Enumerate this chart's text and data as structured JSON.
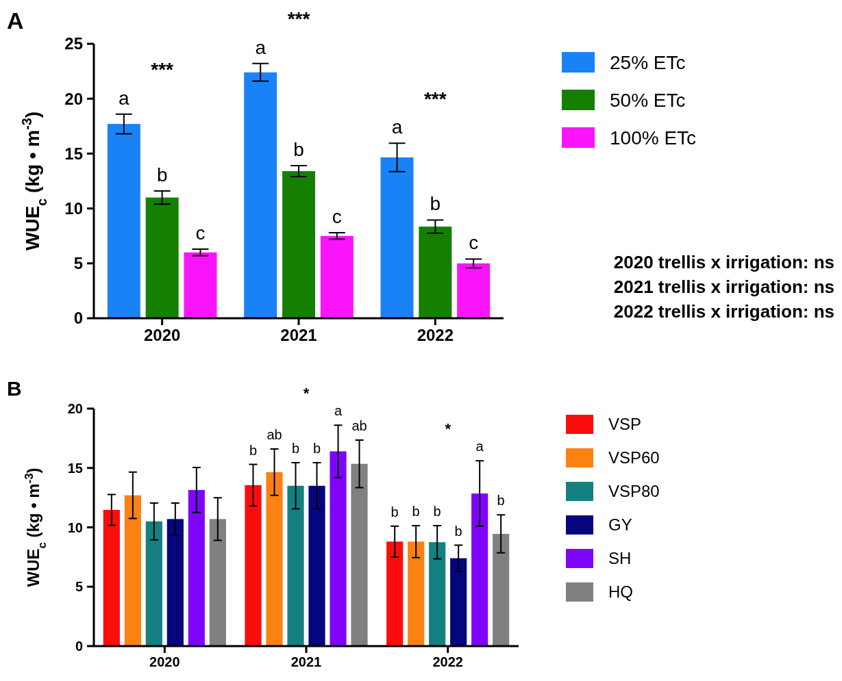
{
  "chart_data": [
    {
      "type": "bar",
      "title": "A",
      "ylabel": "WUE$_{c}$ (kg • m$^{-3}$)",
      "categories": [
        "2020",
        "2021",
        "2022"
      ],
      "ylim": [
        0,
        25
      ],
      "yticks": [
        0,
        5,
        10,
        15,
        20,
        25
      ],
      "grid": false,
      "legend": "right",
      "series": [
        {
          "name": "25% ETc",
          "color": "#1a82f7",
          "values": [
            17.7,
            22.4,
            14.65
          ],
          "errors": [
            0.9,
            0.8,
            1.3
          ],
          "value_labels": [
            "a",
            "a",
            "a"
          ]
        },
        {
          "name": "50% ETc",
          "color": "#158000",
          "values": [
            11.0,
            13.4,
            8.35
          ],
          "errors": [
            0.6,
            0.5,
            0.6
          ],
          "value_labels": [
            "b",
            "b",
            "b"
          ]
        },
        {
          "name": "100% ETc",
          "color": "#fa14fa",
          "values": [
            6.0,
            7.5,
            5.0
          ],
          "errors": [
            0.3,
            0.3,
            0.4
          ],
          "value_labels": [
            "c",
            "c",
            "c"
          ]
        }
      ],
      "annotations": [
        "***",
        "***",
        "***",
        "2020 trellis x irrigation: ns",
        "2021 trellis x irrigation: ns",
        "2022 trellis x irrigation: ns"
      ]
    },
    {
      "type": "bar",
      "title": "B",
      "ylabel": "WUE$_{c}$ (kg • m$^{-3}$)",
      "categories": [
        "2020",
        "2021",
        "2022"
      ],
      "ylim": [
        0,
        20
      ],
      "yticks": [
        0,
        5,
        10,
        15,
        20
      ],
      "grid": false,
      "legend": "right",
      "series": [
        {
          "name": "VSP",
          "color": "#fa0d0d",
          "values": [
            11.47,
            13.55,
            8.8
          ],
          "errors": [
            1.3,
            1.75,
            1.3
          ],
          "value_labels": [
            null,
            "b",
            "b"
          ]
        },
        {
          "name": "VSP60",
          "color": "#fa8213",
          "values": [
            12.7,
            14.65,
            8.8
          ],
          "errors": [
            1.95,
            1.95,
            1.35
          ],
          "value_labels": [
            null,
            "ab",
            "b"
          ]
        },
        {
          "name": "VSP80",
          "color": "#148080",
          "values": [
            10.5,
            13.5,
            8.75
          ],
          "errors": [
            1.55,
            1.95,
            1.4
          ],
          "value_labels": [
            null,
            "b",
            "b"
          ]
        },
        {
          "name": "GY",
          "color": "#05057d",
          "values": [
            10.7,
            13.5,
            7.4
          ],
          "errors": [
            1.35,
            1.95,
            1.1
          ],
          "value_labels": [
            null,
            "b",
            "b"
          ]
        },
        {
          "name": "SH",
          "color": "#7f05fa",
          "values": [
            13.15,
            16.4,
            12.85
          ],
          "errors": [
            1.9,
            2.2,
            2.75
          ],
          "value_labels": [
            null,
            "a",
            "a"
          ]
        },
        {
          "name": "HQ",
          "color": "#808080",
          "values": [
            10.7,
            15.35,
            9.45
          ],
          "errors": [
            1.8,
            2.0,
            1.6
          ],
          "value_labels": [
            null,
            "ab",
            "b"
          ]
        }
      ],
      "annotations": [
        "*",
        "*"
      ]
    }
  ]
}
